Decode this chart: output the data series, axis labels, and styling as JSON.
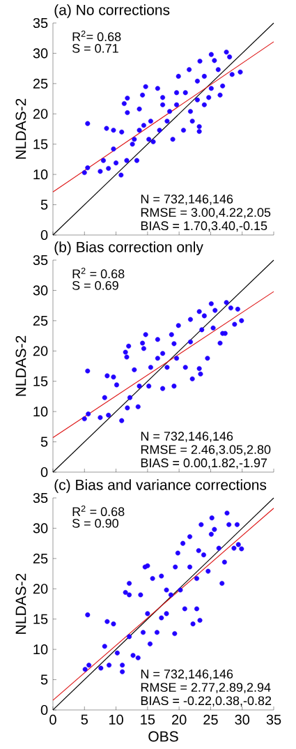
{
  "chart_data": [
    {
      "type": "scatter",
      "title": "(a) No corrections",
      "ylabel": "NLDAS-2",
      "xlim": [
        0,
        35
      ],
      "ylim": [
        0,
        35
      ],
      "xticks": [
        0,
        5,
        10,
        15,
        20,
        25,
        30,
        35
      ],
      "yticks": [
        0,
        5,
        10,
        15,
        20,
        25,
        30,
        35
      ],
      "tick_labels": "y",
      "annotations": [
        "R$^{2}$= 0.68",
        "S = 0.71",
        "N = 732,146,146",
        "RMSE = 3.00,4.22,2.05",
        "BIAS = 1.70,3.40,-0.15"
      ],
      "series": [
        {
          "type": "scatter",
          "marker": "circle",
          "color": "#2200ff",
          "x": [
            5.5,
            5.0,
            5.5,
            7.5,
            8.0,
            8.5,
            8.8,
            9.6,
            9.6,
            10.8,
            10.0,
            10.9,
            11.3,
            11.8,
            11.8,
            11.7,
            13.3,
            12.9,
            13.7,
            14.2,
            14.7,
            14.4,
            15.2,
            15.9,
            16.6,
            17.4,
            18.1,
            19.0,
            19.9,
            20.7,
            21.0,
            22.1,
            23.2,
            23.2,
            23.3,
            21.6,
            22.9,
            24.0,
            25.1,
            25.6,
            26.2,
            26.5,
            27.5,
            28.0,
            28.4,
            29.7,
            26.9,
            24.7,
            24.0,
            17.4,
            15.5,
            19.6,
            21.8,
            18.5,
            16.9,
            13.7,
            12.6,
            19.6,
            22.9,
            25.1
          ],
          "values": [
            18.4,
            10.3,
            11.1,
            10.5,
            12.3,
            17.6,
            11.0,
            17.3,
            14.2,
            9.9,
            11.9,
            17.0,
            21.7,
            22.6,
            20.2,
            12.3,
            12.3,
            15.8,
            20.8,
            23.1,
            24.5,
            18.1,
            15.8,
            15.4,
            24.2,
            21.5,
            18.8,
            15.8,
            26.2,
            17.3,
            23.5,
            18.8,
            17.9,
            17.1,
            28.7,
            27.3,
            25.4,
            21.5,
            29.8,
            28.8,
            27.3,
            23.1,
            30.2,
            29.4,
            26.5,
            26.9,
            24.6,
            22.7,
            26.2,
            22.7,
            18.8,
            21.5,
            20.4,
            20.4,
            17.3,
            17.3,
            15.0,
            23.5,
            22.3,
            24.2
          ]
        },
        {
          "type": "line",
          "color": "#000000",
          "x": [
            0,
            35
          ],
          "values": [
            0,
            35
          ]
        },
        {
          "type": "line",
          "color": "#dd1111",
          "x": [
            0,
            35
          ],
          "values": [
            7.1,
            31.9
          ]
        }
      ]
    },
    {
      "type": "scatter",
      "title": "(b) Bias correction only",
      "ylabel": "NLDAS-2",
      "xlim": [
        0,
        35
      ],
      "ylim": [
        0,
        35
      ],
      "xticks": [
        0,
        5,
        10,
        15,
        20,
        25,
        30,
        35
      ],
      "yticks": [
        0,
        5,
        10,
        15,
        20,
        25,
        30,
        35
      ],
      "tick_labels": "y",
      "annotations": [
        "R$^{2}$ = 0.68",
        "S = 0.69",
        "N = 732,146,146",
        "RMSE = 2.46,3.05,2.80",
        "BIAS = 0.00,1.82,-1.97"
      ],
      "series": [
        {
          "type": "scatter",
          "marker": "circle",
          "color": "#2200ff",
          "x": [
            5.5,
            5.0,
            5.6,
            7.5,
            8.6,
            8.2,
            8.8,
            9.6,
            10.1,
            10.9,
            11.5,
            12.0,
            11.7,
            11.8,
            13.5,
            14.4,
            14.7,
            14.2,
            16.6,
            15.2,
            17.4,
            19.2,
            19.9,
            17.4,
            19.6,
            21.0,
            22.1,
            23.4,
            23.2,
            21.8,
            23.2,
            24.0,
            25.1,
            25.7,
            24.5,
            26.5,
            26.9,
            27.3,
            27.5,
            28.2,
            29.3,
            29.9,
            28.8,
            25.4,
            19.2,
            15.5,
            12.9,
            13.7,
            12.2,
            18.1,
            21.8,
            23.6,
            16.6,
            18.8
          ],
          "values": [
            16.7,
            8.8,
            9.6,
            9.0,
            15.9,
            12.3,
            9.4,
            15.7,
            14.4,
            8.5,
            19.8,
            20.8,
            19.0,
            10.6,
            10.8,
            20.4,
            22.7,
            21.3,
            21.9,
            14.2,
            13.8,
            14.2,
            24.2,
            19.6,
            18.8,
            17.3,
            15.4,
            16.2,
            17.1,
            25.2,
            26.5,
            25.8,
            27.8,
            26.7,
            18.8,
            21.3,
            22.9,
            22.9,
            28.0,
            27.1,
            26.9,
            25.0,
            24.4,
            23.8,
            21.2,
            17.3,
            16.9,
            14.2,
            12.3,
            17.3,
            21.5,
            23.5,
            18.8,
            22.7
          ]
        },
        {
          "type": "line",
          "color": "#000000",
          "x": [
            0,
            35
          ],
          "values": [
            0,
            35
          ]
        },
        {
          "type": "line",
          "color": "#dd1111",
          "x": [
            0,
            35
          ],
          "values": [
            5.7,
            29.8
          ]
        }
      ]
    },
    {
      "type": "scatter",
      "title": "(c) Bias and variance corrections",
      "xlabel": "OBS",
      "ylabel": "NLDAS-2",
      "xlim": [
        0,
        35
      ],
      "ylim": [
        0,
        35
      ],
      "xticks": [
        0,
        5,
        10,
        15,
        20,
        25,
        30,
        35
      ],
      "yticks": [
        0,
        5,
        10,
        15,
        20,
        25,
        30,
        35
      ],
      "annotations": [
        "R$^{2}$ = 0.68",
        "S = 0.90",
        "N = 732,146,146",
        "RMSE = 2.77,2.89,2.94",
        "BIAS = -0.22,0.38,-0.82"
      ],
      "series": [
        {
          "type": "scatter",
          "marker": "circle",
          "color": "#2200ff",
          "x": [
            5.5,
            5.1,
            5.7,
            7.6,
            8.9,
            8.6,
            8.2,
            9.6,
            11.0,
            11.0,
            12.1,
            11.5,
            12.1,
            12.7,
            13.5,
            14.6,
            15.0,
            15.8,
            13.9,
            15.4,
            19.3,
            15.0,
            17.2,
            18.0,
            19.8,
            20.6,
            21.7,
            20.9,
            22.2,
            23.3,
            22.8,
            23.1,
            23.5,
            25.2,
            25.6,
            25.1,
            26.3,
            26.8,
            27.2,
            27.6,
            27.9,
            29.2,
            29.4,
            29.9,
            28.7,
            24.6,
            20.2,
            18.0,
            16.5,
            14.3,
            12.1,
            10.2,
            23.9,
            22.8,
            21.7,
            18.7,
            17.2,
            19.4
          ],
          "values": [
            15.7,
            6.7,
            7.4,
            6.9,
            7.4,
            14.6,
            10.5,
            14.2,
            7.4,
            6.3,
            19.0,
            19.4,
            20.9,
            9.0,
            8.6,
            23.6,
            23.8,
            21.7,
            19.0,
            10.9,
            12.6,
            15.9,
            22.1,
            19.8,
            25.9,
            27.5,
            28.6,
            16.7,
            14.2,
            14.8,
            16.7,
            26.3,
            30.6,
            31.7,
            29.8,
            29.0,
            26.7,
            20.9,
            24.4,
            32.5,
            30.6,
            30.6,
            27.3,
            26.6,
            26.7,
            22.9,
            19.8,
            15.9,
            12.8,
            12.8,
            12.1,
            9.4,
            25.6,
            21.7,
            23.6,
            19.0,
            15.2,
            23.6
          ]
        },
        {
          "type": "line",
          "color": "#000000",
          "x": [
            0,
            35
          ],
          "values": [
            0,
            35
          ]
        },
        {
          "type": "line",
          "color": "#dd1111",
          "x": [
            0,
            35
          ],
          "values": [
            1.6,
            33.3
          ]
        }
      ]
    }
  ]
}
